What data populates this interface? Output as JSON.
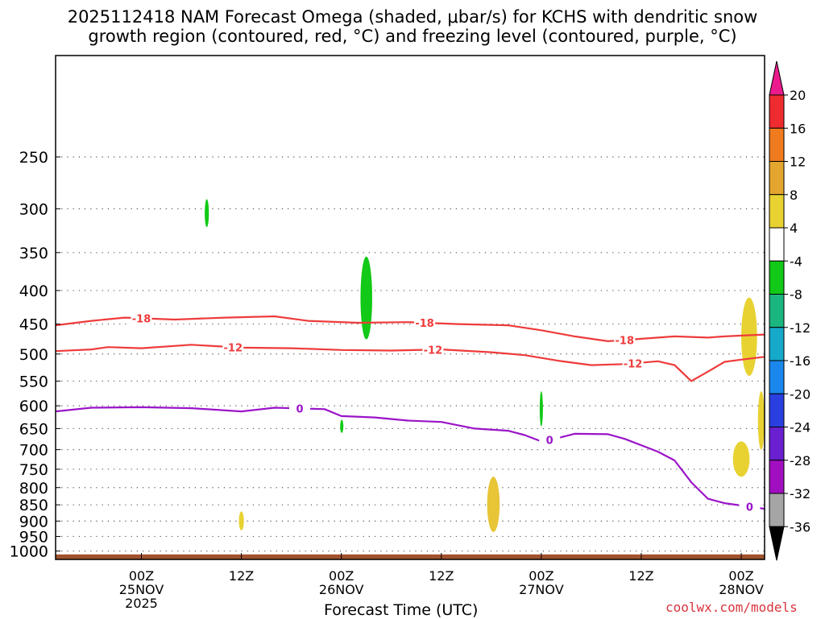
{
  "title_line1": "2025112418 NAM Forecast Omega (shaded, μbar/s) for KCHS with dendritic snow",
  "title_line2": "growth region (contoured, red, °C) and freezing level (contoured, purple, °C)",
  "xaxis_title": "Forecast Time (UTC)",
  "credit": "coolwx.com/models",
  "chart_data": {
    "type": "time-height cross section",
    "x_unit": "hours since 2025-11-24 18Z",
    "x_range": [
      -4.3,
      80.8
    ],
    "y_unit": "hPa",
    "y_range": [
      1030,
      175
    ],
    "pressure_ticks": [
      250,
      300,
      350,
      400,
      450,
      500,
      550,
      600,
      650,
      700,
      750,
      800,
      850,
      900,
      950,
      1000
    ],
    "time_ticks": [
      {
        "hour": 6,
        "label": "00Z",
        "date": "25NOV",
        "year": "2025"
      },
      {
        "hour": 18,
        "label": "12Z"
      },
      {
        "hour": 30,
        "label": "00Z",
        "date": "26NOV"
      },
      {
        "hour": 42,
        "label": "12Z"
      },
      {
        "hour": 54,
        "label": "00Z",
        "date": "27NOV"
      },
      {
        "hour": 66,
        "label": "12Z"
      },
      {
        "hour": 78,
        "label": "00Z",
        "date": "28NOV"
      }
    ],
    "colorbar": {
      "labels": [
        "20",
        "16",
        "12",
        "8",
        "4",
        "-4",
        "-8",
        "-12",
        "-16",
        "-20",
        "-24",
        "-28",
        "-32",
        "-36"
      ],
      "colors": [
        "#ec1b8d",
        "#ee2b2f",
        "#f07b1f",
        "#e4a52f",
        "#e8d232",
        "#ffffff",
        "#11c916",
        "#1bb57f",
        "#17a9c9",
        "#1b87ec",
        "#2a3fe0",
        "#6a1fd0",
        "#a20fc0",
        "#a5a5a5",
        "#000000"
      ]
    },
    "contours": [
      {
        "name": "dgz -18C",
        "color": "#ee3b3b",
        "label": "-18",
        "label_at_hours": [
          6,
          40,
          64
        ],
        "points": [
          [
            -4.3,
            452
          ],
          [
            0,
            445
          ],
          [
            4,
            440
          ],
          [
            10,
            443
          ],
          [
            16,
            440
          ],
          [
            22,
            438
          ],
          [
            26,
            445
          ],
          [
            32,
            448
          ],
          [
            38,
            447
          ],
          [
            44,
            450
          ],
          [
            50,
            452
          ],
          [
            54,
            460
          ],
          [
            58,
            470
          ],
          [
            62,
            478
          ],
          [
            66,
            474
          ],
          [
            70,
            470
          ],
          [
            74,
            472
          ],
          [
            76,
            470
          ],
          [
            80.8,
            467
          ]
        ]
      },
      {
        "name": "dgz -12C",
        "color": "#ee3b3b",
        "label": "-12",
        "label_at_hours": [
          17,
          41,
          65
        ],
        "points": [
          [
            -4.3,
            495
          ],
          [
            0,
            492
          ],
          [
            2,
            488
          ],
          [
            6,
            490
          ],
          [
            12,
            484
          ],
          [
            18,
            489
          ],
          [
            24,
            490
          ],
          [
            30,
            493
          ],
          [
            36,
            494
          ],
          [
            42,
            492
          ],
          [
            48,
            497
          ],
          [
            52,
            502
          ],
          [
            56,
            512
          ],
          [
            60,
            520
          ],
          [
            64,
            518
          ],
          [
            68,
            513
          ],
          [
            70,
            520
          ],
          [
            72,
            550
          ],
          [
            74,
            532
          ],
          [
            76,
            514
          ],
          [
            78,
            510
          ],
          [
            80.8,
            505
          ]
        ]
      },
      {
        "name": "freezing level 0C",
        "color": "#9a14c8",
        "label": "0",
        "label_at_hours": [
          25,
          55,
          79
        ],
        "points": [
          [
            -4.3,
            612
          ],
          [
            0,
            604
          ],
          [
            6,
            603
          ],
          [
            12,
            605
          ],
          [
            18,
            612
          ],
          [
            22,
            604
          ],
          [
            28,
            607
          ],
          [
            30,
            622
          ],
          [
            34,
            625
          ],
          [
            38,
            632
          ],
          [
            42,
            635
          ],
          [
            46,
            650
          ],
          [
            50,
            655
          ],
          [
            52,
            665
          ],
          [
            54,
            680
          ],
          [
            56,
            672
          ],
          [
            58,
            662
          ],
          [
            62,
            663
          ],
          [
            64,
            674
          ],
          [
            68,
            705
          ],
          [
            70,
            727
          ],
          [
            72,
            785
          ],
          [
            74,
            832
          ],
          [
            76,
            845
          ],
          [
            78,
            852
          ],
          [
            80.8,
            862
          ]
        ]
      }
    ],
    "omega_features": [
      {
        "value": "-8",
        "color": "#11c916",
        "hours": [
          13.6,
          14.1
        ],
        "pressure": [
          290,
          320
        ]
      },
      {
        "value": "-8",
        "color": "#11c916",
        "hours": [
          32.3,
          33.7
        ],
        "pressure": [
          355,
          475
        ]
      },
      {
        "value": "-8",
        "color": "#11c916",
        "hours": [
          53.9,
          54.1
        ],
        "pressure": [
          570,
          645
        ]
      },
      {
        "value": "-8",
        "color": "#11c916",
        "hours": [
          30.0,
          30.1
        ],
        "pressure": [
          630,
          660
        ]
      },
      {
        "value": "4",
        "color": "#e8d232",
        "hours": [
          78.0,
          79.9
        ],
        "pressure": [
          410,
          540
        ]
      },
      {
        "value": "4",
        "color": "#e8d232",
        "hours": [
          80.0,
          80.8
        ],
        "pressure": [
          570,
          700
        ]
      },
      {
        "value": "4",
        "color": "#e8d232",
        "hours": [
          77.0,
          79.0
        ],
        "pressure": [
          680,
          770
        ]
      },
      {
        "value": "4",
        "color": "#e8d232",
        "hours": [
          17.7,
          18.3
        ],
        "pressure": [
          870,
          930
        ]
      },
      {
        "value": "8",
        "color": "#e8c437",
        "hours": [
          47.5,
          49.0
        ],
        "pressure": [
          770,
          935
        ]
      }
    ],
    "surface_color": "#a0522d"
  }
}
